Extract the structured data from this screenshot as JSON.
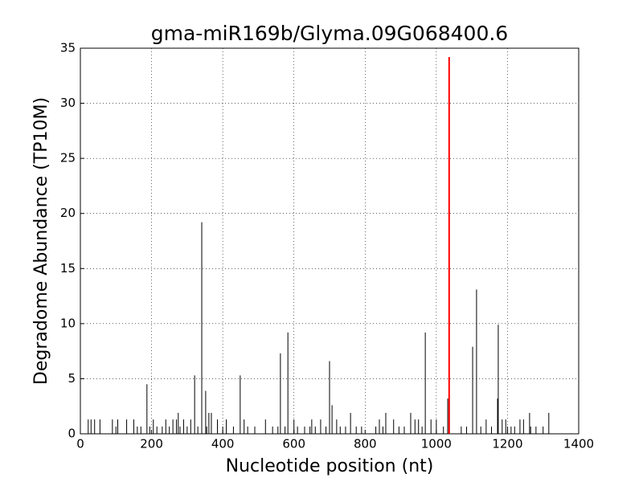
{
  "chart_data": {
    "type": "spike",
    "title": "gma-miR169b/Glyma.09G068400.6",
    "xlabel": "Nucleotide position (nt)",
    "ylabel": "Degradome Abundance (TP10M)",
    "xlim": [
      0,
      1400
    ],
    "xticks": [
      0,
      200,
      400,
      600,
      800,
      1000,
      1200,
      1400
    ],
    "ylim": [
      0,
      35
    ],
    "yticks": [
      0,
      5,
      10,
      15,
      20,
      25,
      30,
      35
    ],
    "grid": true,
    "series": [
      {
        "color": "#000000",
        "x": [
          22,
          30,
          40,
          55,
          90,
          100,
          105,
          130,
          150,
          160,
          170,
          187,
          195,
          205,
          215,
          230,
          240,
          250,
          260,
          270,
          275,
          280,
          290,
          300,
          310,
          321,
          330,
          341,
          352,
          355,
          361,
          368,
          385,
          400,
          410,
          430,
          449,
          460,
          470,
          490,
          520,
          540,
          555,
          562,
          575,
          583,
          600,
          610,
          630,
          645,
          650,
          660,
          675,
          690,
          700,
          707,
          720,
          730,
          745,
          759,
          775,
          790,
          830,
          840,
          850,
          858,
          880,
          895,
          910,
          928,
          940,
          950,
          960,
          969,
          985,
          1000,
          1020,
          1032,
          1070,
          1085,
          1102,
          1113,
          1125,
          1140,
          1155,
          1172,
          1174,
          1185,
          1195,
          1200,
          1210,
          1220,
          1235,
          1245,
          1262,
          1265,
          1280,
          1300,
          1316
        ],
        "values": [
          1.3,
          1.3,
          1.3,
          1.3,
          1.3,
          0.66,
          1.3,
          1.3,
          1.3,
          0.66,
          0.66,
          4.5,
          0.66,
          1.3,
          0.66,
          0.66,
          1.3,
          0.66,
          1.3,
          1.3,
          1.9,
          0.66,
          1.3,
          0.66,
          1.3,
          5.3,
          0.66,
          19.2,
          3.9,
          0.66,
          1.9,
          1.9,
          1.3,
          0.66,
          1.3,
          0.66,
          5.3,
          1.3,
          0.66,
          0.66,
          1.3,
          0.66,
          0.66,
          7.3,
          0.66,
          9.2,
          1.3,
          0.66,
          0.66,
          0.66,
          1.3,
          0.66,
          1.3,
          0.66,
          6.6,
          2.6,
          1.3,
          0.66,
          0.66,
          1.9,
          0.66,
          0.66,
          0.66,
          1.3,
          0.66,
          1.9,
          1.3,
          0.66,
          0.66,
          1.9,
          1.3,
          1.3,
          0.66,
          9.2,
          1.3,
          1.3,
          0.66,
          3.2,
          0.66,
          0.66,
          7.9,
          13.1,
          0.66,
          1.3,
          0.66,
          3.2,
          9.9,
          1.3,
          1.3,
          0.66,
          0.66,
          0.66,
          1.3,
          1.3,
          1.9,
          0.66,
          0.66,
          0.66,
          1.9
        ]
      },
      {
        "color": "#ff0000",
        "x": [
          1036
        ],
        "values": [
          34.2
        ]
      }
    ]
  }
}
